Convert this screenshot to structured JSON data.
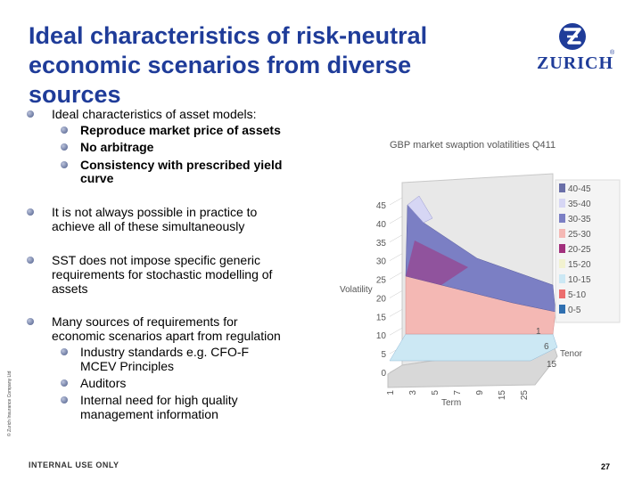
{
  "slide": {
    "title_line1": "Ideal characteristics of risk-neutral",
    "title_line2": "economic scenarios from diverse",
    "title_line3": "sources",
    "logo_text": "ZURICH",
    "logo_reg": "®",
    "bullets": [
      {
        "text": "Ideal characteristics of asset models:"
      },
      {
        "text": "Reproduce market price of assets"
      },
      {
        "text": "No arbitrage"
      },
      {
        "text": "Consistency with prescribed yield"
      },
      {
        "text": "curve"
      },
      {
        "text": "It is not always possible in practice to"
      },
      {
        "text": "achieve all of these simultaneously"
      },
      {
        "text": "SST does not impose specific generic"
      },
      {
        "text": "requirements for stochastic modelling of"
      },
      {
        "text": "assets"
      },
      {
        "text": "Many sources of requirements for"
      },
      {
        "text": "economic scenarios apart from regulation"
      },
      {
        "text": "Industry standards e.g. CFO-F"
      },
      {
        "text": "MCEV Principles"
      },
      {
        "text": "Auditors"
      },
      {
        "text": "Internal need for high quality"
      },
      {
        "text": "management information"
      }
    ],
    "side_copyright": "© Zurich Insurance Company Ltd",
    "footer": "INTERNAL USE ONLY",
    "page_number": "27"
  },
  "chart_data": {
    "type": "surface",
    "title": "GBP market swaption volatilities Q411",
    "zlabel": "Volatility",
    "xlabel": "Term",
    "ylabel": "Tenor",
    "z_ticks": [
      "0",
      "5",
      "10",
      "15",
      "20",
      "25",
      "30",
      "35",
      "40",
      "45"
    ],
    "term_ticks": [
      "1",
      "3",
      "5",
      "7",
      "9",
      "15",
      "25"
    ],
    "tenor_ticks": [
      "1",
      "6",
      "15"
    ],
    "zlim": [
      0,
      45
    ],
    "legend": [
      {
        "label": "40-45",
        "color": "#6a6fa8"
      },
      {
        "label": "35-40",
        "color": "#d6d6f4"
      },
      {
        "label": "30-35",
        "color": "#7b7fc4"
      },
      {
        "label": "25-30",
        "color": "#f4b8b4"
      },
      {
        "label": "20-25",
        "color": "#a2307d"
      },
      {
        "label": "15-20",
        "color": "#f2f2d0"
      },
      {
        "label": "10-15",
        "color": "#cce8f4"
      },
      {
        "label": "5-10",
        "color": "#ec6e6e"
      },
      {
        "label": "0-5",
        "color": "#2f6fb0"
      }
    ],
    "legend_position": "right"
  }
}
